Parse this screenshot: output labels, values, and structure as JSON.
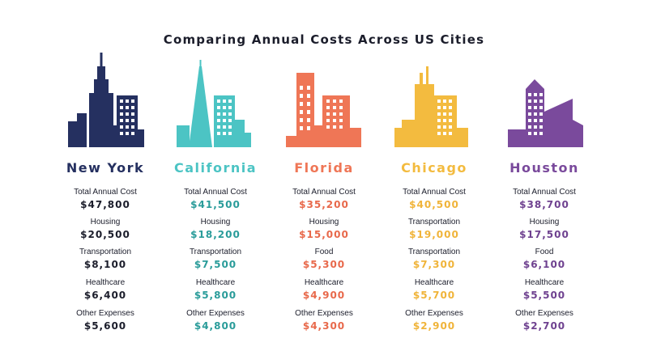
{
  "title": "Comparing Annual Costs Across US Cities",
  "cities": [
    {
      "name": "New York",
      "color": "#253060",
      "value_color": "#1b1d2b",
      "metrics": [
        {
          "label": "Total Annual Cost",
          "value": "$47,800"
        },
        {
          "label": "Housing",
          "value": "$20,500"
        },
        {
          "label": "Transportation",
          "value": "$8,100"
        },
        {
          "label": "Healthcare",
          "value": "$6,400"
        },
        {
          "label": "Other Expenses",
          "value": "$5,600"
        }
      ]
    },
    {
      "name": "California",
      "color": "#4cc4c4",
      "value_color": "#2a9c9a",
      "metrics": [
        {
          "label": "Total Annual Cost",
          "value": "$41,500"
        },
        {
          "label": "Housing",
          "value": "$18,200"
        },
        {
          "label": "Transportation",
          "value": "$7,500"
        },
        {
          "label": "Healthcare",
          "value": "$5,800"
        },
        {
          "label": "Other Expenses",
          "value": "$4,800"
        }
      ]
    },
    {
      "name": "Florida",
      "color": "#ef7656",
      "value_color": "#e8694b",
      "metrics": [
        {
          "label": "Total Annual Cost",
          "value": "$35,200"
        },
        {
          "label": "Housing",
          "value": "$15,000"
        },
        {
          "label": "Food",
          "value": "$5,300"
        },
        {
          "label": "Healthcare",
          "value": "$4,900"
        },
        {
          "label": "Other Expenses",
          "value": "$4,300"
        }
      ]
    },
    {
      "name": "Chicago",
      "color": "#f3bb3f",
      "value_color": "#f0b43a",
      "metrics": [
        {
          "label": "Total Annual Cost",
          "value": "$40,500"
        },
        {
          "label": "Transportation",
          "value": "$19,000"
        },
        {
          "label": "Transportation",
          "value": "$7,300"
        },
        {
          "label": "Healthcare",
          "value": "$5,700"
        },
        {
          "label": "Other Expenses",
          "value": "$2,900"
        }
      ]
    },
    {
      "name": "Houston",
      "color": "#7a4a9c",
      "value_color": "#6f4290",
      "metrics": [
        {
          "label": "Total Annual Cost",
          "value": "$38,700"
        },
        {
          "label": "Housing",
          "value": "$17,500"
        },
        {
          "label": "Food",
          "value": "$6,100"
        },
        {
          "label": "Healthcare",
          "value": "$5,500"
        },
        {
          "label": "Other Expenses",
          "value": "$2,700"
        }
      ]
    }
  ]
}
